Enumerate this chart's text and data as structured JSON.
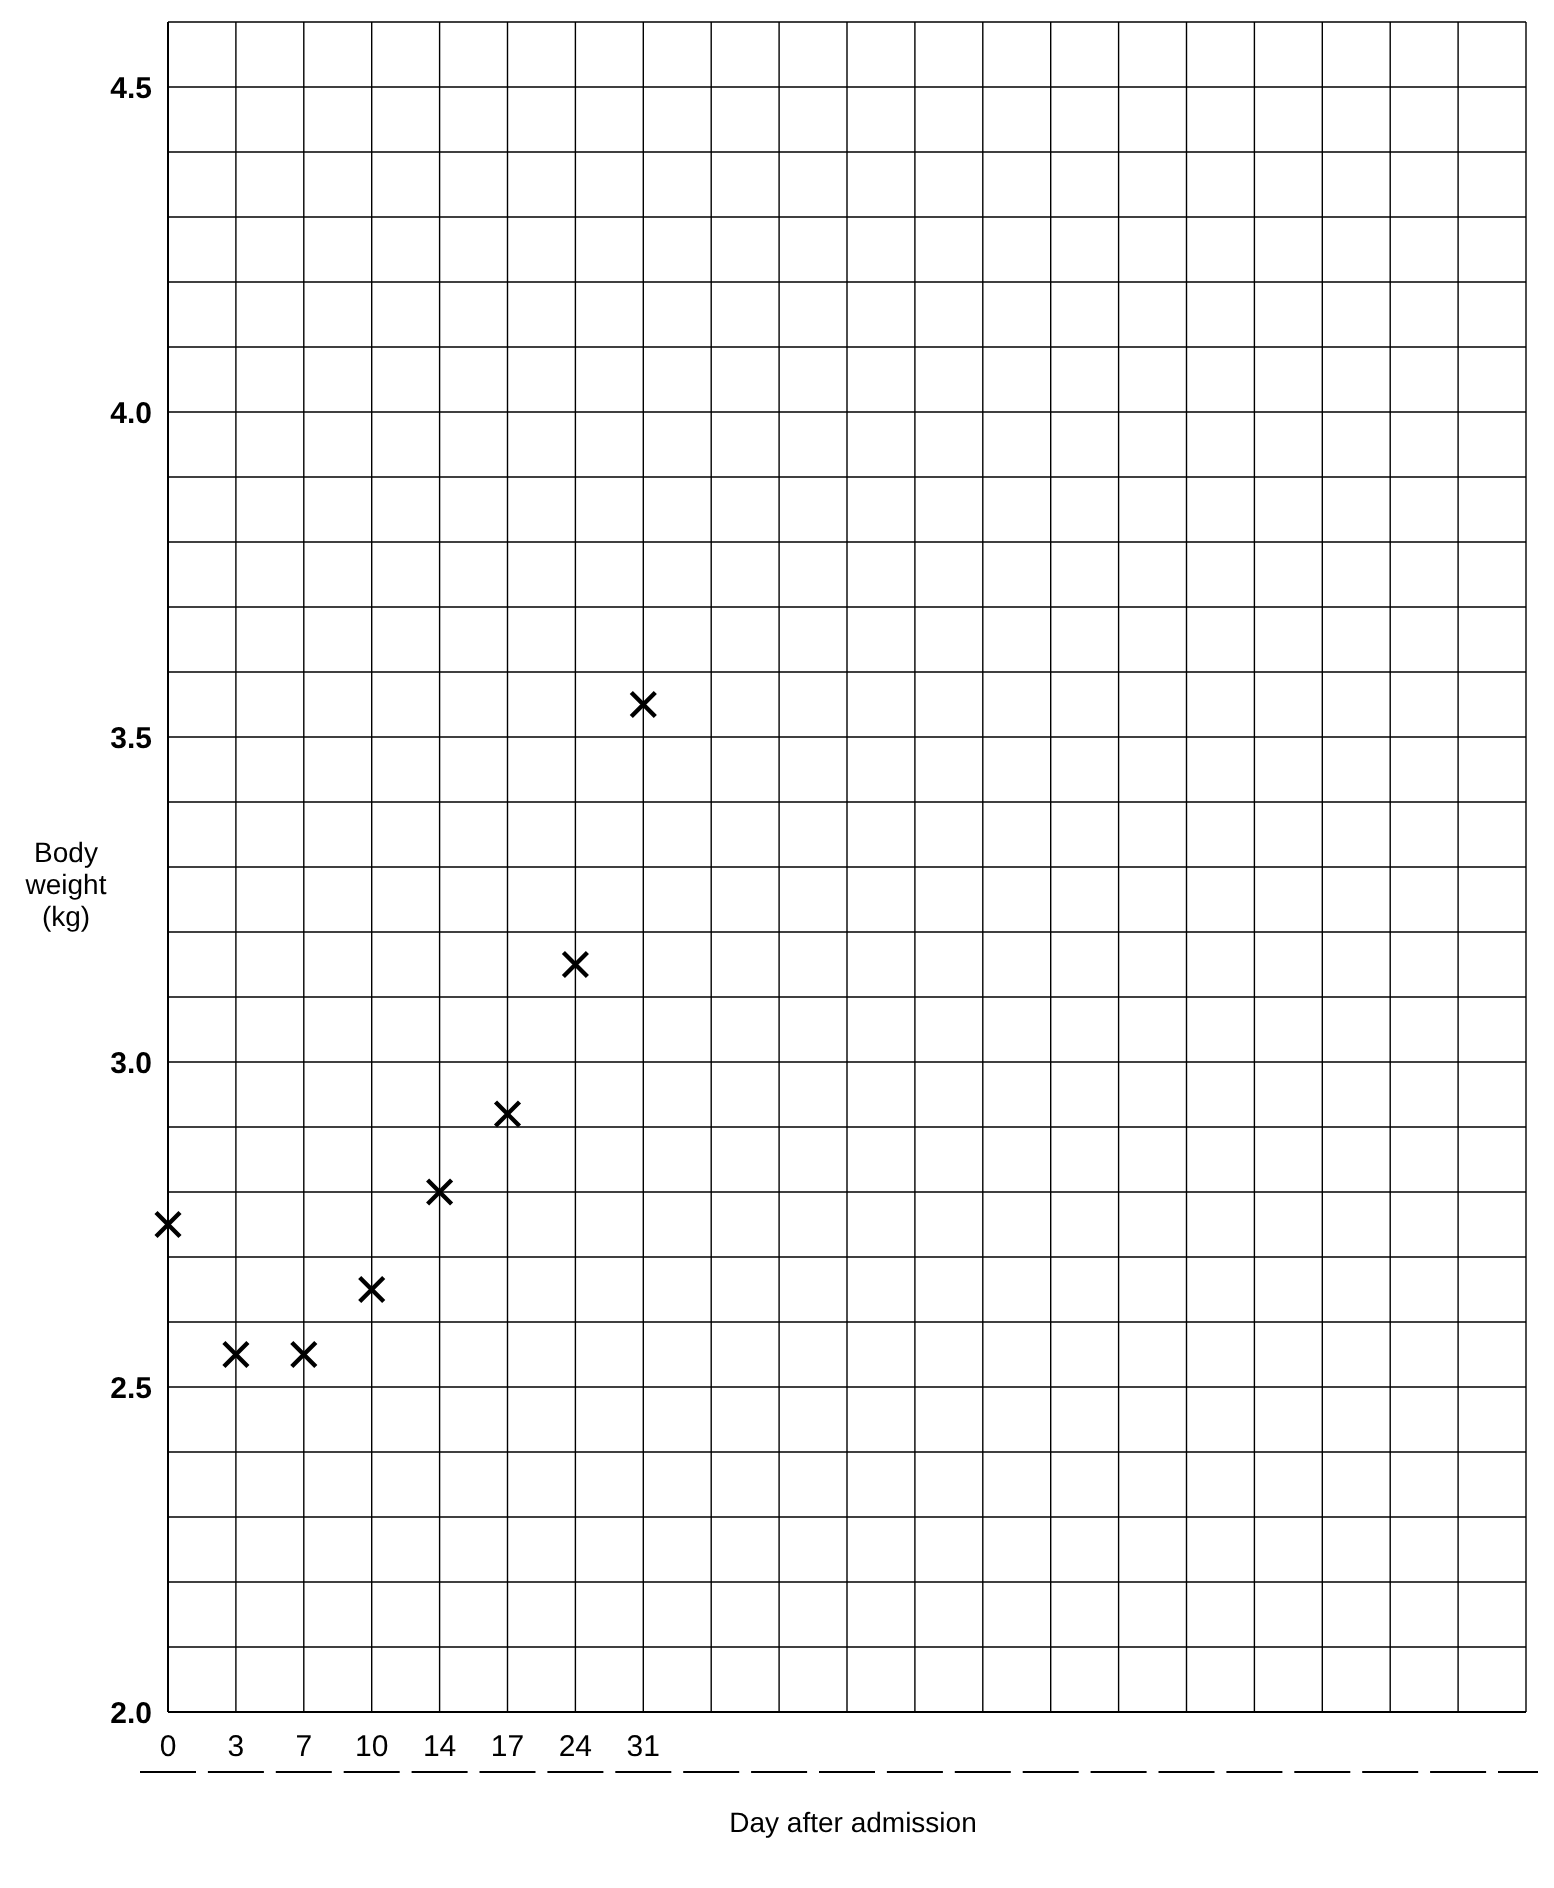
{
  "chart_data": {
    "type": "scatter",
    "xlabel": "Day after admission",
    "ylabel": "Body weight (kg)",
    "categories": [
      "0",
      "3",
      "7",
      "10",
      "14",
      "17",
      "24",
      "31",
      null,
      null,
      null,
      null,
      null,
      null,
      null,
      null,
      null,
      null,
      null,
      null,
      null
    ],
    "series": [
      {
        "color": "#000000",
        "values": [
          2.75,
          2.55,
          2.55,
          2.65,
          2.8,
          2.92,
          3.15,
          3.55,
          null,
          null,
          null,
          null,
          null,
          null,
          null,
          null,
          null,
          null,
          null,
          null,
          null
        ]
      }
    ],
    "ylim": [
      2.0,
      4.6
    ],
    "yticks": [
      "2.0",
      {
        "value": 2.1,
        "label": null
      },
      {
        "value": 2.2,
        "label": null
      },
      {
        "value": 2.3,
        "label": null
      },
      {
        "value": 2.4,
        "label": null
      },
      {
        "value": 2.5,
        "label": "2.5"
      },
      {
        "value": 2.6,
        "label": null
      },
      {
        "value": 2.7,
        "label": null
      },
      {
        "value": 2.8,
        "label": null
      },
      {
        "value": 2.9,
        "label": null
      },
      {
        "value": 3.0,
        "label": "3.0"
      },
      {
        "value": 3.1,
        "label": null
      },
      {
        "value": 3.2,
        "label": null
      },
      {
        "value": 3.3,
        "label": null
      },
      {
        "value": 3.4,
        "label": null
      },
      {
        "value": 3.5,
        "label": "3.5"
      },
      {
        "value": 3.6,
        "label": null
      },
      {
        "value": 3.7,
        "label": null
      },
      {
        "value": 3.8,
        "label": null
      },
      {
        "value": 3.9,
        "label": null
      },
      {
        "value": 4.0,
        "label": "4.0"
      },
      {
        "value": 4.1,
        "label": null
      },
      {
        "value": 4.2,
        "label": null
      },
      {
        "value": 4.3,
        "label": null
      },
      {
        "value": 4.4,
        "label": null
      },
      {
        "value": 4.5,
        "label": "4.5"
      },
      {
        "value": 4.6,
        "label": null
      }
    ],
    "grid": true,
    "marker": "cross"
  }
}
